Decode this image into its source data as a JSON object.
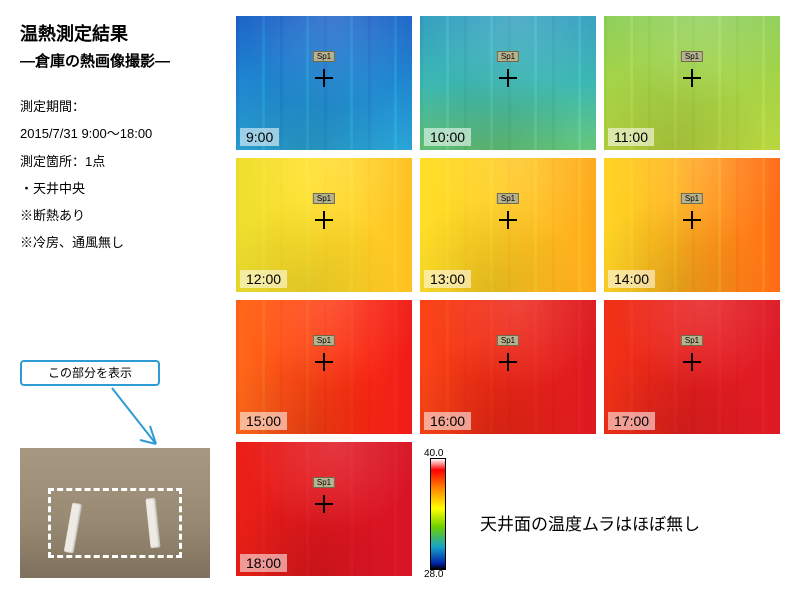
{
  "title": "温熱測定結果",
  "subtitle": "―倉庫の熱画像撮影―",
  "info": {
    "period_label": "測定期間：",
    "period_value": "2015/7/31 9:00～18:00",
    "point_label": "測定箇所：1点",
    "point_detail": "・天井中央",
    "cond1": "※断熱あり",
    "cond2": "※冷房、通風無し"
  },
  "callout_text": "この部分を表示",
  "marker_label": "Sp1",
  "tiles": [
    {
      "time": "9:00",
      "bg": "linear-gradient(180deg,#1d65c8,#1f87d0 50%,#2aa4d6)"
    },
    {
      "time": "10:00",
      "bg": "linear-gradient(180deg,#35a0c0,#3cb8b3 50%,#65c77a)"
    },
    {
      "time": "11:00",
      "bg": "linear-gradient(180deg,#8fd05a,#a6d447 50%,#b8d63f)"
    },
    {
      "time": "12:00",
      "bg": "linear-gradient(90deg,#eedf2e,#ffe02a 40%,#ffd326 70%,#ffbf22)"
    },
    {
      "time": "13:00",
      "bg": "linear-gradient(90deg,#ffdf28,#ffcf22 40%,#ffbd1f 70%,#ffa81c)"
    },
    {
      "time": "14:00",
      "bg": "linear-gradient(90deg,#ffd626,#ffba1e 35%,#ff8b18 70%,#ff6a16)"
    },
    {
      "time": "15:00",
      "bg": "linear-gradient(90deg,#ff6a1a,#ff4a14 35%,#fa2a12 70%,#f01c18)"
    },
    {
      "time": "16:00",
      "bg": "linear-gradient(90deg,#fb4616,#f02a14 40%,#e41e1c 80%,#dc1a22)"
    },
    {
      "time": "17:00",
      "bg": "linear-gradient(90deg,#f23216,#e61e1e 50%,#de1a26)"
    },
    {
      "time": "18:00",
      "bg": "linear-gradient(90deg,#ec2016,#e0161e 50%,#d81426)"
    }
  ],
  "legend": {
    "max": "40.0",
    "min": "28.0"
  },
  "note": "天井面の温度ムラはほぼ無し"
}
